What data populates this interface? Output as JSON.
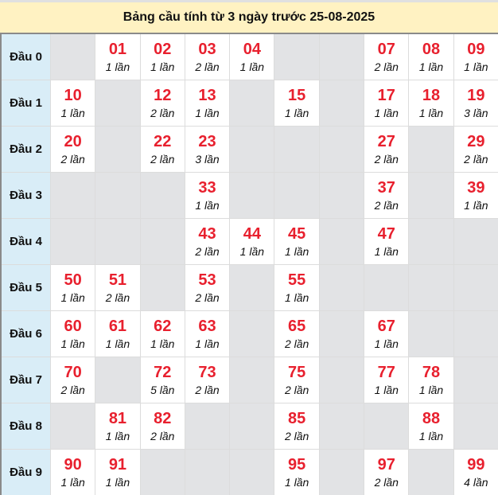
{
  "title": "Bảng cầu tính từ 3 ngày trước 25-08-2025",
  "colors": {
    "number": "#e8202e",
    "label_bg": "#d9edf7",
    "empty_bg": "#e2e3e5",
    "title_bg": "#fff2c2"
  },
  "rows": [
    {
      "label": "Đầu 0",
      "cells": [
        null,
        {
          "num": "01",
          "count": "1 lần"
        },
        {
          "num": "02",
          "count": "1 lần"
        },
        {
          "num": "03",
          "count": "2 lần"
        },
        {
          "num": "04",
          "count": "1 lần"
        },
        null,
        null,
        {
          "num": "07",
          "count": "2 lần"
        },
        {
          "num": "08",
          "count": "1 lần"
        },
        {
          "num": "09",
          "count": "1 lần"
        }
      ]
    },
    {
      "label": "Đầu 1",
      "cells": [
        {
          "num": "10",
          "count": "1 lần"
        },
        null,
        {
          "num": "12",
          "count": "2 lần"
        },
        {
          "num": "13",
          "count": "1 lần"
        },
        null,
        {
          "num": "15",
          "count": "1 lần"
        },
        null,
        {
          "num": "17",
          "count": "1 lần"
        },
        {
          "num": "18",
          "count": "1 lần"
        },
        {
          "num": "19",
          "count": "3 lần"
        }
      ]
    },
    {
      "label": "Đầu 2",
      "cells": [
        {
          "num": "20",
          "count": "2 lần"
        },
        null,
        {
          "num": "22",
          "count": "2 lần"
        },
        {
          "num": "23",
          "count": "3 lần"
        },
        null,
        null,
        null,
        {
          "num": "27",
          "count": "2 lần"
        },
        null,
        {
          "num": "29",
          "count": "2 lần"
        }
      ]
    },
    {
      "label": "Đầu 3",
      "cells": [
        null,
        null,
        null,
        {
          "num": "33",
          "count": "1 lần"
        },
        null,
        null,
        null,
        {
          "num": "37",
          "count": "2 lần"
        },
        null,
        {
          "num": "39",
          "count": "1 lần"
        }
      ]
    },
    {
      "label": "Đầu 4",
      "cells": [
        null,
        null,
        null,
        {
          "num": "43",
          "count": "2 lần"
        },
        {
          "num": "44",
          "count": "1 lần"
        },
        {
          "num": "45",
          "count": "1 lần"
        },
        null,
        {
          "num": "47",
          "count": "1 lần"
        },
        null,
        null
      ]
    },
    {
      "label": "Đầu 5",
      "cells": [
        {
          "num": "50",
          "count": "1 lần"
        },
        {
          "num": "51",
          "count": "2 lần"
        },
        null,
        {
          "num": "53",
          "count": "2 lần"
        },
        null,
        {
          "num": "55",
          "count": "1 lần"
        },
        null,
        null,
        null,
        null
      ]
    },
    {
      "label": "Đầu 6",
      "cells": [
        {
          "num": "60",
          "count": "1 lần"
        },
        {
          "num": "61",
          "count": "1 lần"
        },
        {
          "num": "62",
          "count": "1 lần"
        },
        {
          "num": "63",
          "count": "1 lần"
        },
        null,
        {
          "num": "65",
          "count": "2 lần"
        },
        null,
        {
          "num": "67",
          "count": "1 lần"
        },
        null,
        null
      ]
    },
    {
      "label": "Đầu 7",
      "cells": [
        {
          "num": "70",
          "count": "2 lần"
        },
        null,
        {
          "num": "72",
          "count": "5 lần"
        },
        {
          "num": "73",
          "count": "2 lần"
        },
        null,
        {
          "num": "75",
          "count": "2 lần"
        },
        null,
        {
          "num": "77",
          "count": "1 lần"
        },
        {
          "num": "78",
          "count": "1 lần"
        },
        null
      ]
    },
    {
      "label": "Đầu 8",
      "cells": [
        null,
        {
          "num": "81",
          "count": "1 lần"
        },
        {
          "num": "82",
          "count": "2 lần"
        },
        null,
        null,
        {
          "num": "85",
          "count": "2 lần"
        },
        null,
        null,
        {
          "num": "88",
          "count": "1 lần"
        },
        null
      ]
    },
    {
      "label": "Đầu 9",
      "cells": [
        {
          "num": "90",
          "count": "1 lần"
        },
        {
          "num": "91",
          "count": "1 lần"
        },
        null,
        null,
        null,
        {
          "num": "95",
          "count": "1 lần"
        },
        null,
        {
          "num": "97",
          "count": "2 lần"
        },
        null,
        {
          "num": "99",
          "count": "4 lần"
        }
      ]
    }
  ]
}
